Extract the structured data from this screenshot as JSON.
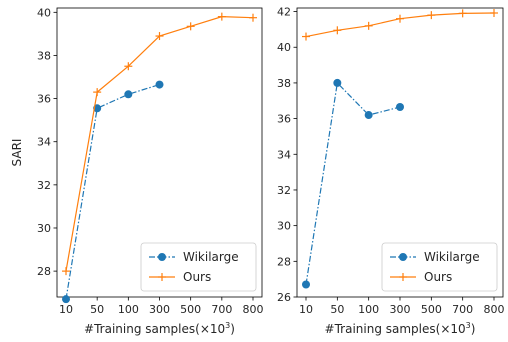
{
  "chart_data": [
    {
      "type": "line",
      "categories": [
        "10",
        "50",
        "100",
        "300",
        "500",
        "700",
        "800"
      ],
      "xlabel": "#Training samples(×10",
      "xlabel_sup": "3",
      "xlabel_tail": ")",
      "ylabel": "SARI",
      "ylim": [
        26.8,
        40.2
      ],
      "yticks": [
        28,
        30,
        32,
        34,
        36,
        38,
        40
      ],
      "series": [
        {
          "name": "Wikilarge",
          "color": "#1f77b4",
          "style": "dashdot",
          "marker": "circle",
          "values": [
            26.7,
            35.55,
            36.2,
            36.65,
            null,
            null,
            null
          ]
        },
        {
          "name": "Ours",
          "color": "#ff7f0e",
          "style": "solid",
          "marker": "plus",
          "values": [
            28.0,
            36.3,
            37.5,
            38.9,
            39.35,
            39.8,
            39.75
          ]
        }
      ],
      "legend": "bottom-right"
    },
    {
      "type": "line",
      "categories": [
        "10",
        "50",
        "100",
        "300",
        "500",
        "700",
        "800"
      ],
      "xlabel": "#Training samples(×10",
      "xlabel_sup": "3",
      "xlabel_tail": ")",
      "ylabel": "",
      "ylim": [
        26,
        42.2
      ],
      "yticks": [
        26,
        28,
        30,
        32,
        34,
        36,
        38,
        40,
        42
      ],
      "series": [
        {
          "name": "Wikilarge",
          "color": "#1f77b4",
          "style": "dashdot",
          "marker": "circle",
          "values": [
            26.7,
            38.0,
            36.2,
            36.65,
            null,
            null,
            null
          ]
        },
        {
          "name": "Ours",
          "color": "#ff7f0e",
          "style": "solid",
          "marker": "plus",
          "values": [
            40.6,
            40.95,
            41.2,
            41.6,
            41.8,
            41.9,
            41.92
          ]
        }
      ],
      "legend": "bottom-right"
    }
  ]
}
